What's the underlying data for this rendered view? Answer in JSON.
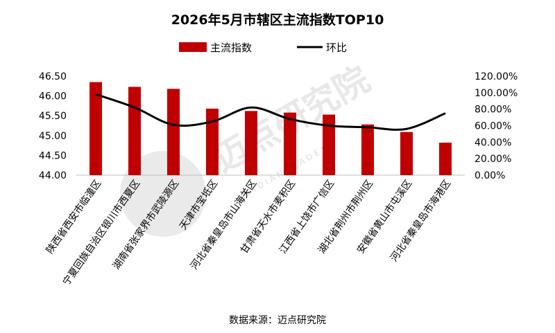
{
  "chart_data": {
    "type": "bar",
    "title": "2026年5月市辖区主流指数TOP10",
    "categories": [
      "陕西省西安市临潼区",
      "宁夏回族自治区银川市西夏区",
      "湖南省张家界市武陵源区",
      "天津市宝坻区",
      "河北省秦皇岛市山海关区",
      "甘肃省天水市麦积区",
      "江西省上饶市广信区",
      "湖北省荆州市荆州区",
      "安徽省黄山市屯溪区",
      "河北省秦皇岛市海港区"
    ],
    "series": [
      {
        "name": "主流指数",
        "type": "bar",
        "axis": "left",
        "color": "#c00000",
        "values": [
          46.35,
          46.23,
          46.18,
          45.68,
          45.62,
          45.58,
          45.53,
          45.28,
          45.09,
          44.82
        ]
      },
      {
        "name": "环比",
        "type": "line",
        "axis": "right",
        "color": "#000000",
        "values": [
          98,
          82,
          61,
          65,
          82,
          68,
          60,
          58,
          56,
          75
        ]
      }
    ],
    "y_left": {
      "min": 44.0,
      "max": 46.5,
      "step": 0.5,
      "ticks": [
        "44.00",
        "44.50",
        "45.00",
        "45.50",
        "46.00",
        "46.50"
      ]
    },
    "y_right": {
      "min": 0,
      "max": 120,
      "step": 20,
      "unit": "%",
      "ticks": [
        "0.00%",
        "20.00%",
        "40.00%",
        "60.00%",
        "80.00%",
        "100.00%",
        "120.00%"
      ]
    },
    "legend_position": "top",
    "grid": false,
    "xlabel": "",
    "ylabel": ""
  },
  "source": "数据来源：迈点研究院",
  "watermark": {
    "text": "迈点研究院",
    "subtext": "M E I D I A N   A C A D E M Y"
  }
}
